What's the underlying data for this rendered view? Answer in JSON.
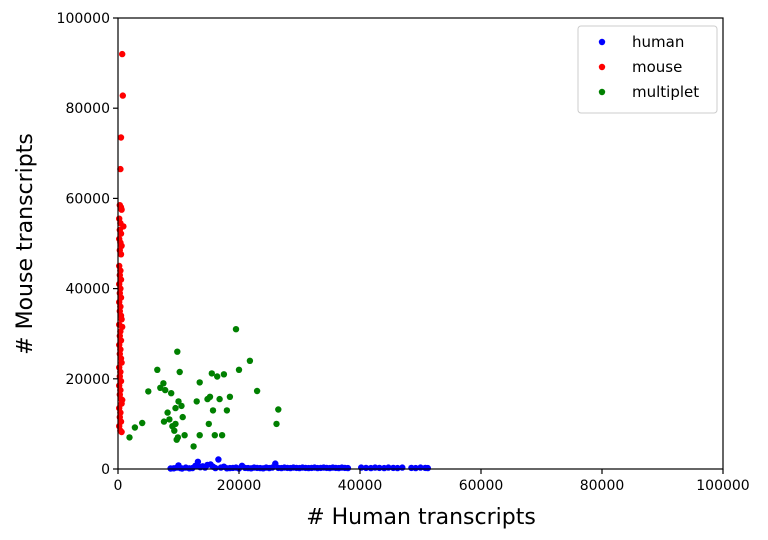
{
  "chart_data": {
    "type": "scatter",
    "title": "",
    "xlabel": "# Human transcripts",
    "ylabel": "# Mouse transcripts",
    "xlim": [
      0,
      100000
    ],
    "ylim": [
      0,
      100000
    ],
    "xticks": [
      "0",
      "20000",
      "40000",
      "60000",
      "80000",
      "100000"
    ],
    "yticks": [
      "0",
      "20000",
      "40000",
      "60000",
      "80000",
      "100000"
    ],
    "grid": false,
    "legend_position": "top-right",
    "series": [
      {
        "name": "human",
        "color": "#0000ff",
        "points": [
          [
            8700,
            100
          ],
          [
            9200,
            150
          ],
          [
            9700,
            300
          ],
          [
            10000,
            800
          ],
          [
            10300,
            200
          ],
          [
            10600,
            120
          ],
          [
            11200,
            300
          ],
          [
            11800,
            150
          ],
          [
            12300,
            200
          ],
          [
            12800,
            700
          ],
          [
            13200,
            1600
          ],
          [
            13600,
            400
          ],
          [
            14000,
            600
          ],
          [
            14400,
            300
          ],
          [
            14800,
            900
          ],
          [
            15300,
            1000
          ],
          [
            15700,
            500
          ],
          [
            16100,
            200
          ],
          [
            16600,
            2100
          ],
          [
            17000,
            300
          ],
          [
            17500,
            500
          ],
          [
            18000,
            150
          ],
          [
            18500,
            200
          ],
          [
            19000,
            250
          ],
          [
            19500,
            300
          ],
          [
            20000,
            120
          ],
          [
            20500,
            700
          ],
          [
            21000,
            250
          ],
          [
            21500,
            200
          ],
          [
            22000,
            150
          ],
          [
            22500,
            300
          ],
          [
            23000,
            250
          ],
          [
            23500,
            200
          ],
          [
            24000,
            150
          ],
          [
            24500,
            300
          ],
          [
            25000,
            200
          ],
          [
            25500,
            300
          ],
          [
            26000,
            1200
          ],
          [
            26500,
            250
          ],
          [
            27000,
            200
          ],
          [
            27500,
            300
          ],
          [
            28000,
            250
          ],
          [
            28500,
            200
          ],
          [
            29000,
            300
          ],
          [
            29500,
            250
          ],
          [
            30000,
            200
          ],
          [
            30500,
            300
          ],
          [
            31000,
            250
          ],
          [
            31500,
            200
          ],
          [
            32000,
            250
          ],
          [
            32500,
            300
          ],
          [
            33000,
            200
          ],
          [
            33500,
            250
          ],
          [
            34000,
            300
          ],
          [
            34500,
            250
          ],
          [
            35000,
            200
          ],
          [
            35500,
            300
          ],
          [
            36000,
            250
          ],
          [
            36500,
            200
          ],
          [
            37000,
            300
          ],
          [
            37500,
            250
          ],
          [
            38000,
            200
          ],
          [
            40200,
            300
          ],
          [
            41000,
            250
          ],
          [
            41800,
            200
          ],
          [
            42500,
            300
          ],
          [
            43200,
            250
          ],
          [
            44000,
            200
          ],
          [
            44700,
            300
          ],
          [
            45500,
            250
          ],
          [
            46200,
            200
          ],
          [
            47000,
            300
          ],
          [
            48500,
            250
          ],
          [
            49200,
            200
          ],
          [
            50000,
            300
          ],
          [
            50800,
            250
          ],
          [
            51200,
            200
          ]
        ]
      },
      {
        "name": "mouse",
        "color": "#ff0000",
        "points": [
          [
            700,
            92000
          ],
          [
            800,
            82800
          ],
          [
            500,
            73500
          ],
          [
            400,
            66500
          ],
          [
            300,
            58500
          ],
          [
            500,
            58000
          ],
          [
            600,
            57500
          ],
          [
            200,
            55500
          ],
          [
            400,
            54500
          ],
          [
            900,
            53800
          ],
          [
            300,
            53000
          ],
          [
            500,
            52200
          ],
          [
            200,
            51000
          ],
          [
            400,
            50200
          ],
          [
            600,
            49500
          ],
          [
            300,
            48500
          ],
          [
            500,
            47600
          ],
          [
            200,
            45000
          ],
          [
            400,
            44000
          ],
          [
            300,
            43000
          ],
          [
            500,
            42000
          ],
          [
            200,
            41000
          ],
          [
            400,
            40000
          ],
          [
            300,
            39000
          ],
          [
            500,
            38000
          ],
          [
            200,
            37000
          ],
          [
            400,
            36000
          ],
          [
            300,
            35000
          ],
          [
            500,
            34000
          ],
          [
            600,
            33200
          ],
          [
            200,
            32000
          ],
          [
            700,
            31500
          ],
          [
            400,
            30500
          ],
          [
            300,
            29500
          ],
          [
            500,
            28500
          ],
          [
            200,
            27500
          ],
          [
            400,
            26500
          ],
          [
            300,
            25500
          ],
          [
            500,
            24500
          ],
          [
            600,
            23600
          ],
          [
            200,
            22500
          ],
          [
            400,
            21500
          ],
          [
            300,
            20500
          ],
          [
            500,
            19500
          ],
          [
            200,
            18500
          ],
          [
            400,
            17500
          ],
          [
            300,
            16500
          ],
          [
            500,
            15500
          ],
          [
            700,
            15300
          ],
          [
            600,
            14500
          ],
          [
            200,
            13500
          ],
          [
            400,
            12500
          ],
          [
            300,
            11500
          ],
          [
            500,
            10500
          ],
          [
            200,
            9500
          ],
          [
            400,
            8500
          ],
          [
            600,
            8200
          ]
        ]
      },
      {
        "name": "multiplet",
        "color": "#008000",
        "points": [
          [
            1900,
            7000
          ],
          [
            2800,
            9200
          ],
          [
            4000,
            10200
          ],
          [
            5000,
            17200
          ],
          [
            6500,
            22000
          ],
          [
            7000,
            18000
          ],
          [
            7500,
            19000
          ],
          [
            7800,
            17500
          ],
          [
            7600,
            10500
          ],
          [
            8200,
            12500
          ],
          [
            8500,
            11000
          ],
          [
            8800,
            16800
          ],
          [
            9000,
            9500
          ],
          [
            9300,
            8500
          ],
          [
            9500,
            13500
          ],
          [
            9500,
            10000
          ],
          [
            9700,
            6500
          ],
          [
            9800,
            26000
          ],
          [
            9900,
            7000
          ],
          [
            10000,
            15000
          ],
          [
            10200,
            21500
          ],
          [
            10500,
            14000
          ],
          [
            10700,
            11500
          ],
          [
            11000,
            7500
          ],
          [
            12500,
            5000
          ],
          [
            13000,
            15000
          ],
          [
            13500,
            7500
          ],
          [
            13500,
            19200
          ],
          [
            14800,
            15500
          ],
          [
            15000,
            10000
          ],
          [
            15200,
            16000
          ],
          [
            15500,
            21200
          ],
          [
            15700,
            13000
          ],
          [
            16000,
            7500
          ],
          [
            16400,
            20500
          ],
          [
            16800,
            15500
          ],
          [
            17200,
            7500
          ],
          [
            17500,
            21000
          ],
          [
            18000,
            13000
          ],
          [
            18500,
            16000
          ],
          [
            19500,
            31000
          ],
          [
            20000,
            22000
          ],
          [
            21800,
            24000
          ],
          [
            23000,
            17300
          ],
          [
            26200,
            10000
          ],
          [
            26500,
            13200
          ]
        ]
      }
    ]
  }
}
